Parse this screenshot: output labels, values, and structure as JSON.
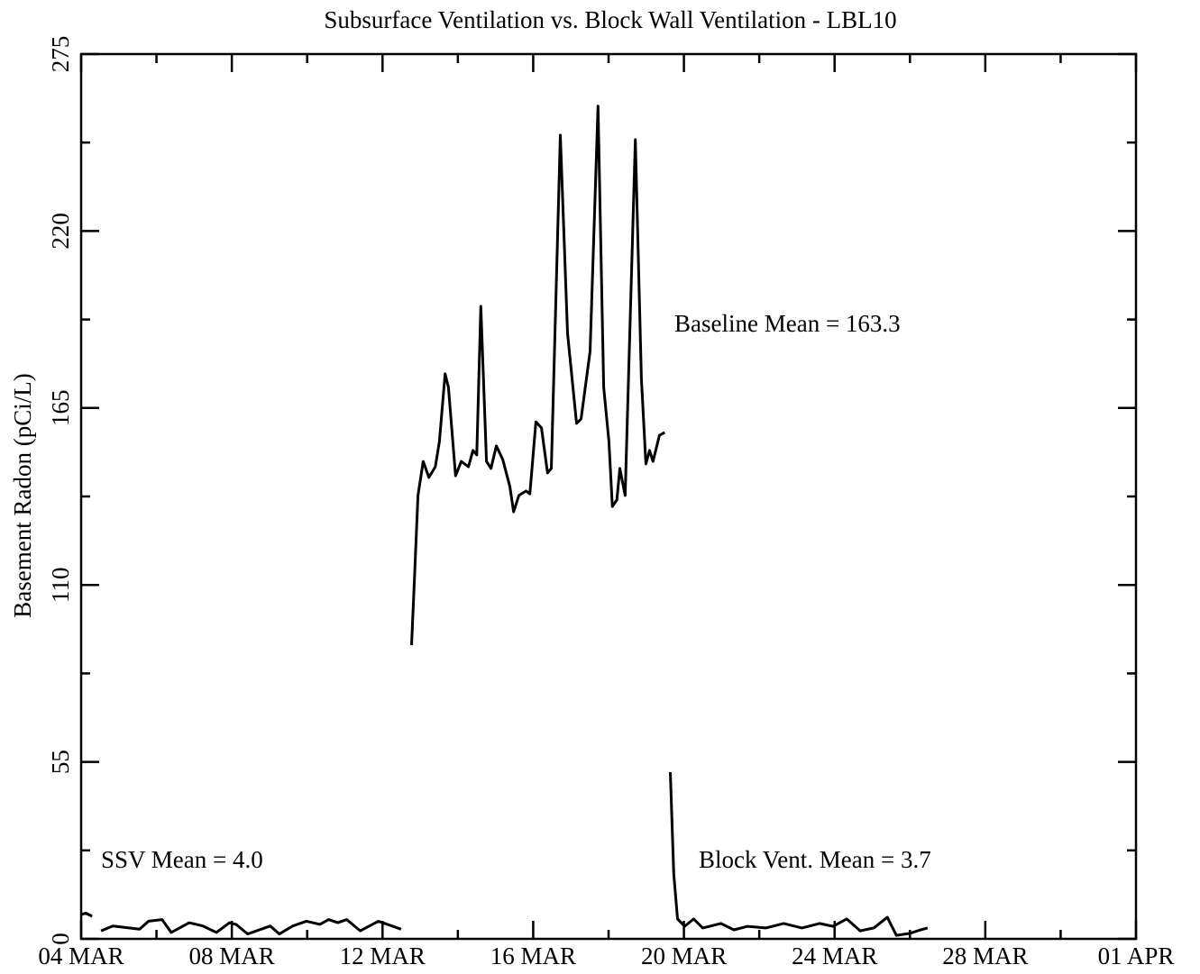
{
  "chart_data": {
    "type": "line",
    "title": "Subsurface Ventilation vs. Block Wall Ventilation - LBL10",
    "y_label": "Basement Radon (pCi/L)",
    "annotations": [
      "Baseline Mean = 163.3",
      "SSV Mean = 4.0",
      "Block Vent. Mean = 3.7"
    ],
    "color": "#000000",
    "xlim": [
      4,
      32
    ],
    "xticks": [
      {
        "value": 4,
        "label": "04 MAR"
      },
      {
        "value": 8,
        "label": "08 MAR"
      },
      {
        "value": 12,
        "label": "12 MAR"
      },
      {
        "value": 16,
        "label": "16 MAR"
      },
      {
        "value": 20,
        "label": "20 MAR"
      },
      {
        "value": 24,
        "label": "24 MAR"
      },
      {
        "value": 28,
        "label": "28 MAR"
      },
      {
        "value": 32,
        "label": "01 APR"
      }
    ],
    "xminorticks": [
      6,
      10,
      14,
      18,
      22,
      26,
      30
    ],
    "ylim": [
      0,
      275
    ],
    "yticks": [
      0,
      55,
      110,
      165,
      220,
      275
    ],
    "yminorticks": [
      27.5,
      82.5,
      137.5,
      192.5,
      247.5
    ],
    "x": [
      4.0,
      4.12,
      4.29,
      null,
      4.53,
      4.84,
      5.2,
      5.55,
      5.79,
      6.15,
      6.39,
      6.87,
      7.23,
      7.59,
      7.94,
      8.11,
      8.42,
      8.78,
      9.02,
      9.26,
      9.62,
      9.98,
      10.34,
      10.57,
      10.81,
      11.05,
      11.41,
      11.89,
      12.25,
      12.49,
      null,
      12.77,
      12.85,
      12.94,
      13.08,
      13.23,
      13.4,
      13.51,
      13.66,
      13.75,
      13.94,
      14.09,
      14.28,
      14.4,
      14.5,
      14.61,
      14.76,
      14.88,
      15.02,
      15.19,
      15.38,
      15.48,
      15.62,
      15.81,
      15.91,
      16.07,
      16.22,
      16.38,
      16.48,
      16.72,
      16.91,
      17.15,
      17.27,
      17.51,
      17.72,
      17.87,
      18.01,
      18.1,
      18.22,
      18.3,
      18.44,
      18.71,
      18.87,
      18.99,
      19.09,
      19.18,
      19.35,
      19.49,
      null,
      19.64,
      19.73,
      19.83,
      20.02,
      20.26,
      20.5,
      20.98,
      21.33,
      21.69,
      22.17,
      22.65,
      23.13,
      23.6,
      23.96,
      24.32,
      24.68,
      25.04,
      25.4,
      25.64,
      26.0,
      26.28,
      26.47
    ],
    "values": [
      7.5,
      8,
      7,
      null,
      2.5,
      4,
      3.5,
      3,
      5.5,
      6,
      2,
      5,
      4,
      2,
      5,
      4.5,
      1.5,
      3,
      4,
      1.5,
      4,
      5.5,
      4.5,
      6,
      5,
      6,
      2.5,
      5.5,
      4,
      3,
      null,
      91.3,
      112.6,
      137.8,
      148.4,
      143.4,
      146.7,
      154.6,
      175.6,
      171.4,
      143.9,
      148.4,
      146.7,
      151.8,
      150.4,
      196.6,
      148.4,
      146.2,
      153.2,
      149,
      140.6,
      132.7,
      137.8,
      139.2,
      138.3,
      160.7,
      158.8,
      144.8,
      146.2,
      249.8,
      188.2,
      160.2,
      161.6,
      182.6,
      258.8,
      171.4,
      154.6,
      134.4,
      136.4,
      146.2,
      137.8,
      248.4,
      174.2,
      147.6,
      151.8,
      148.4,
      156.5,
      157.4,
      null,
      51.8,
      20.2,
      6.2,
      3.9,
      6.2,
      3.4,
      4.8,
      2.8,
      3.9,
      3.4,
      4.8,
      3.4,
      4.8,
      3.9,
      6.2,
      2.5,
      3.4,
      6.7,
      1.1,
      1.7,
      2.8,
      3.4
    ]
  }
}
